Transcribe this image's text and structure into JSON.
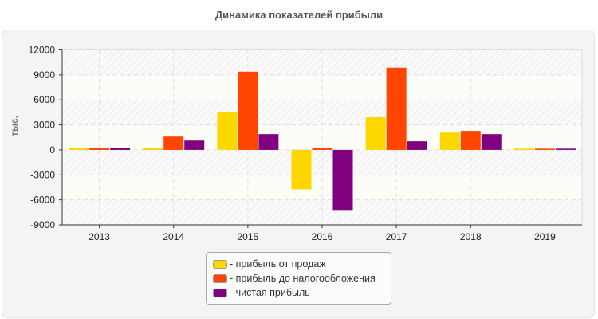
{
  "chart_data": {
    "type": "bar",
    "title": "Динамика показателей прибыли",
    "ylabel": "тыс.",
    "xlabel": "",
    "ylim": [
      -9000,
      12000
    ],
    "yticks": [
      "12000",
      "9000",
      "6000",
      "3000",
      "0",
      "-3000",
      "-6000",
      "-9000"
    ],
    "grid": true,
    "legend_position": "bottom",
    "categories": [
      "2013",
      "2014",
      "2015",
      "2016",
      "2017",
      "2018",
      "2019"
    ],
    "series": [
      {
        "name": "- прибыль от продаж",
        "color": "#FFD700",
        "values": [
          200,
          250,
          4490,
          -4740,
          3910,
          2080,
          150
        ]
      },
      {
        "name": "- прибыль до налогообложения",
        "color": "#FF4500",
        "values": [
          200,
          1600,
          9390,
          260,
          9870,
          2280,
          150
        ]
      },
      {
        "name": "- чистая прибыль",
        "color": "#800080",
        "values": [
          200,
          1120,
          1890,
          -7210,
          1030,
          1890,
          150
        ]
      }
    ]
  }
}
